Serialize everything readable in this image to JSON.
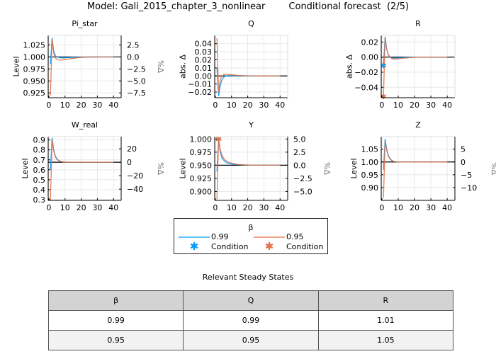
{
  "title": "Model: Gali_2015_chapter_3_nonlinear        Conditional forecast  (2/5)",
  "colors": {
    "series_0_99": "#009AFA",
    "series_0_95": "#E26F46",
    "steady_state": "#000000",
    "grid": "#e8e8e8"
  },
  "chart_data": [
    {
      "type": "line",
      "title": "Pi_star",
      "ylabel": "Level",
      "ylabel_right": "%Δ",
      "steady_state": 1.0,
      "xlim": [
        -0.4,
        44.7
      ],
      "ylim": [
        0.915,
        1.045
      ],
      "x_ticks": [
        0,
        10,
        20,
        30,
        40
      ],
      "y_ticks": [
        0.925,
        0.95,
        0.975,
        1.0,
        1.025
      ],
      "y_tick_labels": [
        "0.925",
        "0.950",
        "0.975",
        "1.000",
        "1.025"
      ],
      "y_right_tick_labels": [
        "−7.5",
        "−5.0",
        "−2.5",
        "0.0",
        "2.5"
      ],
      "series": [
        {
          "name": "0.99",
          "values": [
            0.985,
            1.04,
            1.012,
            1.003,
            1.0,
            0.999,
            0.9985,
            0.998,
            0.998,
            0.9982,
            0.9984,
            0.9986,
            0.9988,
            0.999,
            0.9992,
            0.9993,
            0.9994,
            0.9995,
            0.9996,
            0.9997,
            0.9997,
            0.9998,
            0.9998,
            0.9999,
            0.9999,
            1,
            1,
            1,
            1,
            1,
            1,
            1,
            1,
            1,
            1,
            1,
            1,
            1,
            1,
            1
          ]
        },
        {
          "name": "0.95",
          "values": [
            0.92,
            1.037,
            1.008,
            0.998,
            0.995,
            0.994,
            0.9935,
            0.9937,
            0.994,
            0.9945,
            0.995,
            0.9955,
            0.996,
            0.9965,
            0.997,
            0.9975,
            0.998,
            0.9985,
            0.9988,
            0.999,
            0.9992,
            0.9994,
            0.9995,
            0.9996,
            0.9997,
            0.9998,
            0.9998,
            0.9999,
            0.9999,
            1,
            1,
            1,
            1,
            1,
            1,
            1,
            1,
            1,
            1,
            1
          ]
        }
      ],
      "conditions": []
    },
    {
      "type": "line",
      "title": "Q",
      "ylabel": "abs. Δ",
      "ylabel_right": "",
      "steady_state": 0.0,
      "xlim": [
        -0.4,
        44.7
      ],
      "ylim": [
        -0.027,
        0.0503
      ],
      "x_ticks": [
        0,
        10,
        20,
        30,
        40
      ],
      "y_ticks": [
        -0.02,
        -0.01,
        0,
        0.01,
        0.02,
        0.03,
        0.04
      ],
      "y_tick_labels": [
        "−0.02",
        "−0.01",
        "0.00",
        "0.01",
        "0.02",
        "0.03",
        "0.04"
      ],
      "y_right_tick_labels": [],
      "series": [
        {
          "name": "0.99",
          "values": [
            0.01,
            -0.025,
            -0.012,
            -0.005,
            -0.002,
            -0.0005,
            0.0002,
            0.0004,
            0.0004,
            0.0003,
            0.0003,
            0.0002,
            0.0002,
            0.0001,
            0.0001,
            0.0001,
            0,
            0,
            0,
            0,
            0,
            0,
            0,
            0,
            0,
            0,
            0,
            0,
            0,
            0,
            0,
            0,
            0,
            0,
            0,
            0,
            0,
            0,
            0,
            0
          ]
        },
        {
          "name": "0.95",
          "values": [
            0.047,
            -0.02,
            -0.005,
            0.0,
            0.0015,
            0.002,
            0.002,
            0.0019,
            0.0017,
            0.0015,
            0.0013,
            0.0011,
            0.0009,
            0.0007,
            0.0006,
            0.0005,
            0.0004,
            0.0003,
            0.0002,
            0.0002,
            0.0001,
            0.0001,
            0,
            0,
            0,
            0,
            0,
            0,
            0,
            0,
            0,
            0,
            0,
            0,
            0,
            0,
            0,
            0,
            0,
            0
          ]
        }
      ],
      "conditions": []
    },
    {
      "type": "line",
      "title": "R",
      "ylabel": "abs. Δ",
      "ylabel_right": "",
      "steady_state": 0.0,
      "xlim": [
        -0.4,
        44.7
      ],
      "ylim": [
        -0.0538,
        0.0287
      ],
      "x_ticks": [
        0,
        10,
        20,
        30,
        40
      ],
      "y_ticks": [
        -0.04,
        -0.02,
        0,
        0.02
      ],
      "y_tick_labels": [
        "−0.04",
        "−0.02",
        "0.00",
        "0.02"
      ],
      "y_right_tick_labels": [],
      "series": [
        {
          "name": "0.99",
          "values": [
            -0.011,
            0.027,
            0.01,
            0.003,
            0.0,
            -0.001,
            -0.0015,
            -0.0014,
            -0.0012,
            -0.001,
            -0.0008,
            -0.0007,
            -0.0006,
            -0.0005,
            -0.0004,
            -0.0003,
            -0.0002,
            -0.0002,
            -0.0001,
            -0.0001,
            0,
            0,
            0,
            0,
            0,
            0,
            0,
            0,
            0,
            0,
            0,
            0,
            0,
            0,
            0,
            0,
            0,
            0,
            0,
            0
          ]
        },
        {
          "name": "0.95",
          "values": [
            -0.052,
            0.025,
            0.01,
            0.003,
            0.0,
            -0.002,
            -0.0025,
            -0.0025,
            -0.0024,
            -0.0022,
            -0.002,
            -0.0018,
            -0.0015,
            -0.0013,
            -0.0011,
            -0.0009,
            -0.0007,
            -0.0006,
            -0.0005,
            -0.0004,
            -0.0003,
            -0.0002,
            -0.0002,
            -0.0001,
            -0.0001,
            0,
            0,
            0,
            0,
            0,
            0,
            0,
            0,
            0,
            0,
            0,
            0,
            0,
            0,
            0
          ]
        }
      ],
      "conditions": [
        {
          "series": "0.99",
          "x": 1,
          "y": -0.011
        },
        {
          "series": "0.95",
          "x": 1,
          "y": -0.052
        }
      ]
    },
    {
      "type": "line",
      "title": "W_real",
      "ylabel": "Level",
      "ylabel_right": "%Δ",
      "steady_state": 0.676,
      "xlim": [
        -0.4,
        44.7
      ],
      "ylim": [
        0.293,
        0.933
      ],
      "x_ticks": [
        0,
        10,
        20,
        30,
        40
      ],
      "y_ticks": [
        0.3,
        0.4,
        0.5,
        0.6,
        0.7,
        0.8,
        0.9
      ],
      "y_tick_labels": [
        "0.3",
        "0.4",
        "0.5",
        "0.6",
        "0.7",
        "0.8",
        "0.9"
      ],
      "y_right_ticks": [
        -40,
        -20,
        0,
        20
      ],
      "y_right_tick_labels": [
        "−40",
        "−20",
        "0",
        "20"
      ],
      "series": [
        {
          "name": "0.99",
          "values": [
            0.6,
            0.92,
            0.8,
            0.74,
            0.71,
            0.695,
            0.686,
            0.681,
            0.679,
            0.678,
            0.677,
            0.677,
            0.676,
            0.676,
            0.676,
            0.676,
            0.676,
            0.676,
            0.676,
            0.676,
            0.676,
            0.676,
            0.676,
            0.676,
            0.676,
            0.676,
            0.676,
            0.676,
            0.676,
            0.676,
            0.676,
            0.676,
            0.676,
            0.676,
            0.676,
            0.676,
            0.676,
            0.676,
            0.676,
            0.676
          ]
        },
        {
          "name": "0.95",
          "values": [
            0.3,
            0.9,
            0.79,
            0.73,
            0.705,
            0.692,
            0.685,
            0.681,
            0.679,
            0.678,
            0.677,
            0.677,
            0.676,
            0.676,
            0.676,
            0.676,
            0.676,
            0.676,
            0.676,
            0.676,
            0.676,
            0.676,
            0.676,
            0.676,
            0.676,
            0.676,
            0.676,
            0.676,
            0.676,
            0.676,
            0.676,
            0.676,
            0.676,
            0.676,
            0.676,
            0.676,
            0.676,
            0.676,
            0.676,
            0.676
          ]
        }
      ],
      "conditions": []
    },
    {
      "type": "line",
      "title": "Y",
      "ylabel": "Level",
      "ylabel_right": "%Δ",
      "steady_state": 0.95,
      "xlim": [
        -0.4,
        44.7
      ],
      "ylim": [
        0.883,
        1.0046
      ],
      "x_ticks": [
        0,
        10,
        20,
        30,
        40
      ],
      "y_ticks": [
        0.9,
        0.925,
        0.95,
        0.975,
        1.0
      ],
      "y_tick_labels": [
        "0.900",
        "0.925",
        "0.950",
        "0.975",
        "1.000"
      ],
      "y_right_tick_labels": [
        "−5.0",
        "−2.5",
        "0.0",
        "2.5",
        "5.0"
      ],
      "series": [
        {
          "name": "0.99",
          "values": [
            0.938,
            1.0,
            0.975,
            0.965,
            0.96,
            0.957,
            0.955,
            0.954,
            0.953,
            0.9525,
            0.952,
            0.9517,
            0.9514,
            0.9512,
            0.951,
            0.9508,
            0.9506,
            0.9505,
            0.9504,
            0.9503,
            0.9502,
            0.9502,
            0.9501,
            0.9501,
            0.9501,
            0.95,
            0.95,
            0.95,
            0.95,
            0.95,
            0.95,
            0.95,
            0.95,
            0.95,
            0.95,
            0.95,
            0.95,
            0.95,
            0.95,
            0.95
          ]
        },
        {
          "name": "0.95",
          "values": [
            0.885,
            1.0,
            0.98,
            0.97,
            0.964,
            0.96,
            0.958,
            0.956,
            0.955,
            0.954,
            0.9533,
            0.9527,
            0.9522,
            0.9518,
            0.9515,
            0.9512,
            0.951,
            0.9508,
            0.9506,
            0.9505,
            0.9504,
            0.9503,
            0.9502,
            0.9502,
            0.9501,
            0.9501,
            0.95,
            0.95,
            0.95,
            0.95,
            0.95,
            0.95,
            0.95,
            0.95,
            0.95,
            0.95,
            0.95,
            0.95,
            0.95,
            0.95
          ]
        }
      ],
      "conditions": [
        {
          "series": "0.99",
          "x": 2,
          "y": 1.0
        },
        {
          "series": "0.95",
          "x": 2,
          "y": 1.0
        }
      ]
    },
    {
      "type": "line",
      "title": "Z",
      "ylabel": "Level",
      "ylabel_right": "%Δ",
      "steady_state": 1.0,
      "xlim": [
        -0.4,
        44.7
      ],
      "ylim": [
        0.85,
        1.099
      ],
      "x_ticks": [
        0,
        10,
        20,
        30,
        40
      ],
      "y_ticks": [
        0.9,
        0.95,
        1.0,
        1.05
      ],
      "y_tick_labels": [
        "0.90",
        "0.95",
        "1.00",
        "1.05"
      ],
      "y_right_tick_labels": [
        "−10",
        "−5",
        "0",
        "5"
      ],
      "series": [
        {
          "name": "0.99",
          "values": [
            0.97,
            1.09,
            1.05,
            1.025,
            1.013,
            1.006,
            1.003,
            1.0015,
            1.0007,
            1.0003,
            1.0001,
            1,
            1,
            1,
            1,
            1,
            1,
            1,
            1,
            1,
            1,
            1,
            1,
            1,
            1,
            1,
            1,
            1,
            1,
            1,
            1,
            1,
            1,
            1,
            1,
            1,
            1,
            1,
            1,
            1
          ]
        },
        {
          "name": "0.95",
          "values": [
            0.86,
            1.08,
            1.045,
            1.022,
            1.011,
            1.005,
            1.0025,
            1.0012,
            1.0006,
            1.0003,
            1.0001,
            1,
            1,
            1,
            1,
            1,
            1,
            1,
            1,
            1,
            1,
            1,
            1,
            1,
            1,
            1,
            1,
            1,
            1,
            1,
            1,
            1,
            1,
            1,
            1,
            1,
            1,
            1,
            1,
            1
          ]
        }
      ],
      "conditions": []
    }
  ],
  "legend": {
    "title": "β",
    "entries": [
      {
        "label": "0.99",
        "condition_label": "Condition"
      },
      {
        "label": "0.95",
        "condition_label": "Condition"
      }
    ],
    "placement": "bottom-center"
  },
  "table": {
    "title": "Relevant Steady States",
    "headers": [
      "β",
      "Q",
      "R"
    ],
    "rows": [
      [
        "0.99",
        "0.99",
        "1.01"
      ],
      [
        "0.95",
        "0.95",
        "1.05"
      ]
    ]
  }
}
